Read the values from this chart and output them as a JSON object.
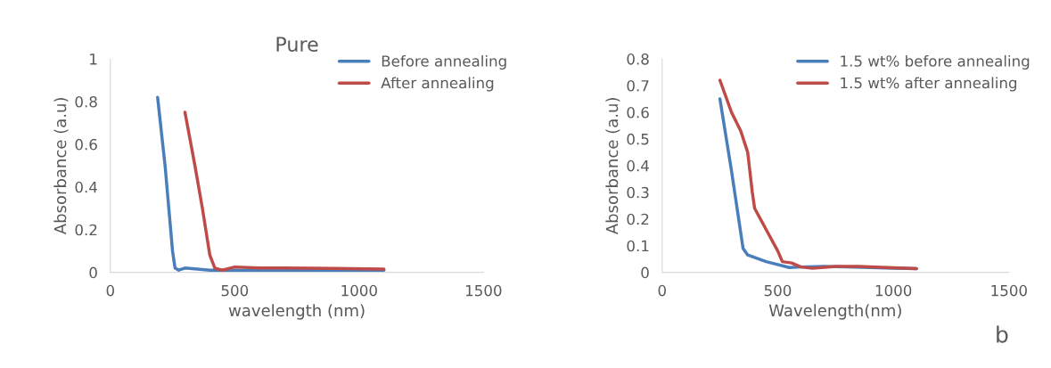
{
  "chart_data": [
    {
      "type": "line",
      "title": "Pure",
      "xlabel": "wavelength (nm)",
      "ylabel": "Absorbance (a.u)",
      "xlim": [
        0,
        1500
      ],
      "xticks": [
        0,
        500,
        1000,
        1500
      ],
      "ylim": [
        0,
        1
      ],
      "yticks": [
        0,
        0.2,
        0.4,
        0.6,
        0.8,
        1
      ],
      "grid": false,
      "legend": "top right",
      "series": [
        {
          "name": "Before annealing",
          "color": "#4a7ebb",
          "x": [
            190,
            220,
            250,
            260,
            275,
            300,
            350,
            400,
            500,
            700,
            1100
          ],
          "values": [
            0.82,
            0.5,
            0.1,
            0.02,
            0.01,
            0.02,
            0.015,
            0.01,
            0.01,
            0.01,
            0.01
          ]
        },
        {
          "name": "After annealing",
          "color": "#be4b48",
          "x": [
            300,
            340,
            370,
            400,
            420,
            450,
            500,
            600,
            700,
            900,
            1100
          ],
          "values": [
            0.75,
            0.5,
            0.3,
            0.08,
            0.02,
            0.01,
            0.025,
            0.02,
            0.02,
            0.018,
            0.015
          ]
        }
      ]
    },
    {
      "type": "line",
      "xlabel": "Wavelength(nm)",
      "ylabel": "Absorbance (a.u)",
      "xlim": [
        0,
        1500
      ],
      "xticks": [
        0,
        500,
        1000,
        1500
      ],
      "ylim": [
        0,
        0.8
      ],
      "yticks": [
        0,
        0.1,
        0.2,
        0.3,
        0.4,
        0.5,
        0.6,
        0.7,
        0.8
      ],
      "grid": false,
      "legend": "top right",
      "annotations": [
        "b"
      ],
      "series": [
        {
          "name": "1.5 wt% before annealing",
          "color": "#4a7ebb",
          "x": [
            250,
            300,
            350,
            370,
            450,
            550,
            600,
            700,
            800,
            1000,
            1100
          ],
          "values": [
            0.65,
            0.38,
            0.09,
            0.065,
            0.04,
            0.018,
            0.02,
            0.022,
            0.02,
            0.015,
            0.014
          ]
        },
        {
          "name": "1.5 wt% after annealing",
          "color": "#be4b48",
          "x": [
            250,
            300,
            340,
            370,
            390,
            400,
            450,
            500,
            520,
            560,
            600,
            650,
            750,
            850,
            1000,
            1100
          ],
          "values": [
            0.72,
            0.6,
            0.53,
            0.45,
            0.3,
            0.24,
            0.16,
            0.08,
            0.04,
            0.035,
            0.02,
            0.015,
            0.022,
            0.022,
            0.017,
            0.014
          ]
        }
      ]
    }
  ]
}
